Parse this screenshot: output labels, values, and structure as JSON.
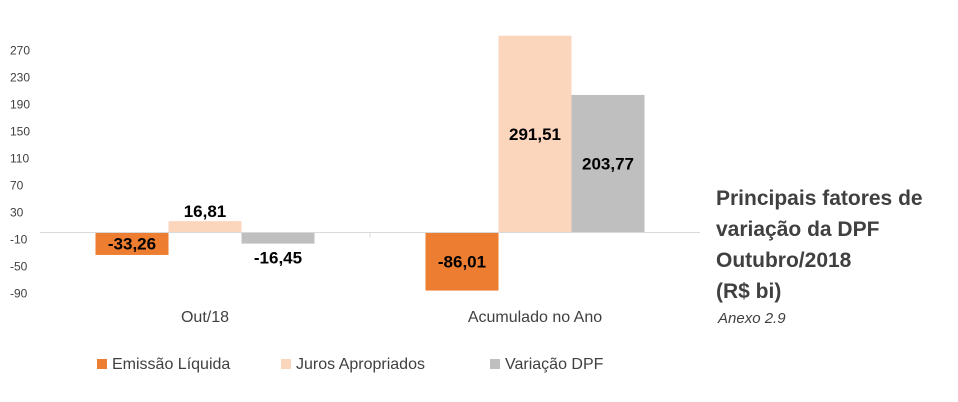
{
  "chart_data": {
    "type": "bar",
    "categories": [
      "Out/18",
      "Acumulado no Ano"
    ],
    "series": [
      {
        "name": "Emissão Líquida",
        "values": [
          -33.26,
          -86.01
        ],
        "labels": [
          "-33,26",
          "-86,01"
        ],
        "color": "#ed7d31"
      },
      {
        "name": "Juros Apropriados",
        "values": [
          16.81,
          291.51
        ],
        "labels": [
          "16,81",
          "291,51"
        ],
        "color": "#fbd5bc"
      },
      {
        "name": "Variação DPF",
        "values": [
          -16.45,
          203.77
        ],
        "labels": [
          "-16,45",
          "203,77"
        ],
        "color": "#bfbfbf"
      }
    ],
    "yticks": [
      "270",
      "230",
      "190",
      "150",
      "110",
      "70",
      "30",
      "-10",
      "-50",
      "-90"
    ],
    "ytick_values": [
      270,
      230,
      190,
      150,
      110,
      70,
      30,
      -10,
      -50,
      -90
    ],
    "ylim": [
      -100,
      290
    ],
    "grid": false,
    "legend_position": "bottom-left"
  },
  "title_lines": [
    "Principais fatores de",
    "variação da DPF",
    "Outubro/2018",
    "(R$ bi)"
  ],
  "subtitle": "Anexo 2.9"
}
